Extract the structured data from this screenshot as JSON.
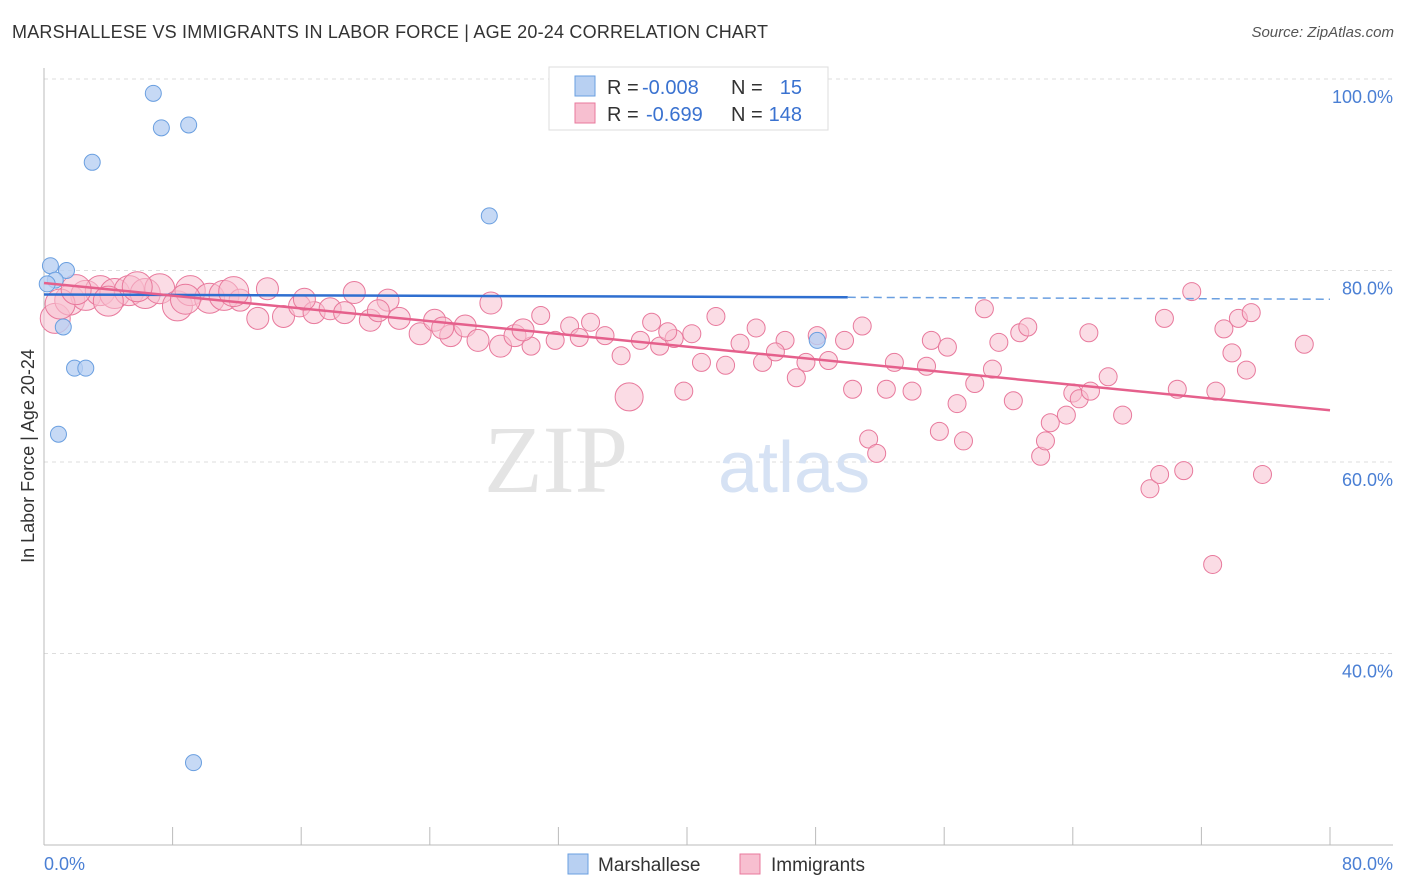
{
  "chart_data": {
    "type": "scatter",
    "title": "MARSHALLESE VS IMMIGRANTS IN LABOR FORCE | AGE 20-24 CORRELATION CHART",
    "source": "Source: ZipAtlas.com",
    "xlabel": "",
    "ylabel": "In Labor Force | Age 20-24",
    "xlim": [
      0,
      80
    ],
    "ylim": [
      20,
      100
    ],
    "x_tick_labels": [
      "0.0%",
      "80.0%"
    ],
    "y_ticks": [
      100,
      80,
      60,
      40
    ],
    "y_tick_labels": [
      "100.0%",
      "80.0%",
      "60.0%",
      "40.0%"
    ],
    "grid": true,
    "watermark": "ZIPatlas",
    "legend_position": "top-center",
    "stats": [
      {
        "r_label": "R =",
        "r": "-0.008",
        "n_label": "N =",
        "n": "15"
      },
      {
        "r_label": "R =",
        "r": "-0.699",
        "n_label": "N =",
        "n": "148"
      }
    ],
    "series": [
      {
        "name": "Marshallese",
        "color": "#6a9fe0",
        "fill": "#b8d0f2",
        "trend": {
          "x": [
            0,
            50,
            80
          ],
          "y": [
            77.5,
            77.2,
            77.0
          ],
          "solid_until": 50
        },
        "points": [
          [
            6.8,
            98.5
          ],
          [
            7.3,
            94.9
          ],
          [
            9.0,
            95.2
          ],
          [
            3.0,
            91.3
          ],
          [
            27.7,
            85.7
          ],
          [
            0.4,
            80.5
          ],
          [
            1.4,
            80.0
          ],
          [
            0.7,
            79.0
          ],
          [
            0.2,
            78.6
          ],
          [
            1.2,
            74.1
          ],
          [
            1.9,
            69.8
          ],
          [
            2.6,
            69.8
          ],
          [
            0.9,
            62.9
          ],
          [
            9.3,
            28.6
          ],
          [
            48.1,
            72.7
          ]
        ]
      },
      {
        "name": "Immigrants",
        "color": "#e8799c",
        "fill": "#f7bfd0",
        "trend": {
          "x": [
            0,
            80
          ],
          "y": [
            78.7,
            65.4
          ]
        },
        "points": [
          [
            0.7,
            75.0
          ],
          [
            1.6,
            76.9
          ],
          [
            2.6,
            77.4
          ],
          [
            3.5,
            77.9
          ],
          [
            4.4,
            77.6
          ],
          [
            5.3,
            77.9
          ],
          [
            6.3,
            77.6
          ],
          [
            7.2,
            78.1
          ],
          [
            8.3,
            76.3
          ],
          [
            9.1,
            77.9
          ],
          [
            10.3,
            77.1
          ],
          [
            11.2,
            77.4
          ],
          [
            12.2,
            76.9
          ],
          [
            13.3,
            75.0
          ],
          [
            13.9,
            78.1
          ],
          [
            14.9,
            75.2
          ],
          [
            15.9,
            76.3
          ],
          [
            16.8,
            75.6
          ],
          [
            17.8,
            76.0
          ],
          [
            18.7,
            75.6
          ],
          [
            19.3,
            77.7
          ],
          [
            20.3,
            74.8
          ],
          [
            21.4,
            76.9
          ],
          [
            22.1,
            75.0
          ],
          [
            23.4,
            73.4
          ],
          [
            24.3,
            74.8
          ],
          [
            25.3,
            73.2
          ],
          [
            26.2,
            74.2
          ],
          [
            27.0,
            72.7
          ],
          [
            27.8,
            76.6
          ],
          [
            28.4,
            72.1
          ],
          [
            29.3,
            73.2
          ],
          [
            30.3,
            72.1
          ],
          [
            30.9,
            75.3
          ],
          [
            31.8,
            72.7
          ],
          [
            32.7,
            74.2
          ],
          [
            34.0,
            74.6
          ],
          [
            34.9,
            73.2
          ],
          [
            35.9,
            71.1
          ],
          [
            36.4,
            66.8
          ],
          [
            37.1,
            72.7
          ],
          [
            37.8,
            74.6
          ],
          [
            38.3,
            72.1
          ],
          [
            39.2,
            72.9
          ],
          [
            39.8,
            67.4
          ],
          [
            40.3,
            73.4
          ],
          [
            40.9,
            70.4
          ],
          [
            41.8,
            75.2
          ],
          [
            42.4,
            70.1
          ],
          [
            43.3,
            72.4
          ],
          [
            44.3,
            74.0
          ],
          [
            44.7,
            70.4
          ],
          [
            46.1,
            72.7
          ],
          [
            46.8,
            68.8
          ],
          [
            47.4,
            70.4
          ],
          [
            48.1,
            73.2
          ],
          [
            48.8,
            70.6
          ],
          [
            49.8,
            72.7
          ],
          [
            50.3,
            67.6
          ],
          [
            50.9,
            74.2
          ],
          [
            51.3,
            62.4
          ],
          [
            51.8,
            60.9
          ],
          [
            52.4,
            67.6
          ],
          [
            52.9,
            70.4
          ],
          [
            54.0,
            67.4
          ],
          [
            54.9,
            70.0
          ],
          [
            55.2,
            72.7
          ],
          [
            55.7,
            63.2
          ],
          [
            56.2,
            72.0
          ],
          [
            56.8,
            66.1
          ],
          [
            57.2,
            62.2
          ],
          [
            57.9,
            68.2
          ],
          [
            58.5,
            76.0
          ],
          [
            59.0,
            69.7
          ],
          [
            59.4,
            72.5
          ],
          [
            60.3,
            66.4
          ],
          [
            60.7,
            73.5
          ],
          [
            61.2,
            74.1
          ],
          [
            62.0,
            60.6
          ],
          [
            62.3,
            62.2
          ],
          [
            62.6,
            64.1
          ],
          [
            63.6,
            64.9
          ],
          [
            64.0,
            67.2
          ],
          [
            64.4,
            66.6
          ],
          [
            65.1,
            67.4
          ],
          [
            65.0,
            73.5
          ],
          [
            66.2,
            68.9
          ],
          [
            67.1,
            64.9
          ],
          [
            68.8,
            57.2
          ],
          [
            69.4,
            58.7
          ],
          [
            69.7,
            75.0
          ],
          [
            70.5,
            67.6
          ],
          [
            70.9,
            59.1
          ],
          [
            71.4,
            77.8
          ],
          [
            72.7,
            49.3
          ],
          [
            72.9,
            67.4
          ],
          [
            73.4,
            73.9
          ],
          [
            73.9,
            71.4
          ],
          [
            74.3,
            75.0
          ],
          [
            74.8,
            69.6
          ],
          [
            75.1,
            75.6
          ],
          [
            75.8,
            58.7
          ],
          [
            78.4,
            72.3
          ],
          [
            1.0,
            76.5
          ],
          [
            2.0,
            78.0
          ],
          [
            4.0,
            76.8
          ],
          [
            5.8,
            78.3
          ],
          [
            8.8,
            77.0
          ],
          [
            11.8,
            77.8
          ],
          [
            16.2,
            77.0
          ],
          [
            20.8,
            75.8
          ],
          [
            24.8,
            74.0
          ],
          [
            29.8,
            73.8
          ],
          [
            33.3,
            73.0
          ],
          [
            38.8,
            73.6
          ],
          [
            45.5,
            71.5
          ]
        ]
      }
    ]
  }
}
